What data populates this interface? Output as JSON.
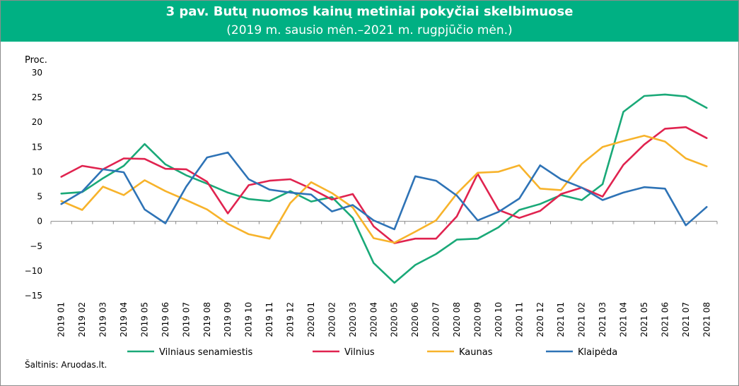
{
  "header": {
    "title": "3 pav. Butų nuomos kainų metiniai pokyčiai skelbimuose",
    "subtitle": "(2019 m. sausio mėn.–2021 m. rugpjūčio mėn.)"
  },
  "source_note": "Šaltinis: Aruodas.lt.",
  "chart_data": {
    "type": "line",
    "ylabel": "Proc.",
    "ylim": [
      -15,
      30
    ],
    "yticks": [
      -15,
      -10,
      -5,
      0,
      5,
      10,
      15,
      20,
      25,
      30
    ],
    "grid": false,
    "legend_position": "bottom",
    "categories": [
      "2019 01",
      "2019 02",
      "2019 03",
      "2019 04",
      "2019 05",
      "2019 06",
      "2019 07",
      "2019 08",
      "2019 09",
      "2019 10",
      "2019 11",
      "2019 12",
      "2020 01",
      "2020 02",
      "2020 03",
      "2020 04",
      "2020 05",
      "2020 06",
      "2020 07",
      "2020 08",
      "2020 09",
      "2020 10",
      "2020 11",
      "2020 12",
      "2021 01",
      "2021 02",
      "2021 03",
      "2021 04",
      "2021 05",
      "2021 06",
      "2021 07",
      "2021 08"
    ],
    "series": [
      {
        "name": "Vilniaus senamiestis",
        "color": "#1aa978",
        "values": [
          5.6,
          5.9,
          8.7,
          11.2,
          15.6,
          11.5,
          9.3,
          7.6,
          5.8,
          4.5,
          4.1,
          6.1,
          4.0,
          4.9,
          0.7,
          -8.4,
          -12.4,
          -8.8,
          -6.6,
          -3.7,
          -3.5,
          -1.2,
          2.3,
          3.5,
          5.3,
          4.3,
          7.5,
          22.1,
          25.3,
          25.6,
          25.2,
          22.9
        ]
      },
      {
        "name": "Vilnius",
        "color": "#e0234f",
        "values": [
          9.0,
          11.2,
          10.5,
          12.7,
          12.6,
          10.6,
          10.5,
          8.0,
          1.6,
          7.3,
          8.2,
          8.5,
          6.6,
          4.4,
          5.5,
          -1.0,
          -4.4,
          -3.5,
          -3.5,
          1.0,
          9.6,
          2.3,
          0.7,
          2.1,
          5.5,
          6.8,
          5.0,
          11.4,
          15.5,
          18.7,
          19.0,
          16.8
        ]
      },
      {
        "name": "Kaunas",
        "color": "#f7b32b",
        "values": [
          4.1,
          2.3,
          7.0,
          5.3,
          8.3,
          6.1,
          4.3,
          2.4,
          -0.5,
          -2.6,
          -3.5,
          3.7,
          7.9,
          5.7,
          2.8,
          -3.4,
          -4.3,
          -2.1,
          0.2,
          5.6,
          9.8,
          10.0,
          11.3,
          6.6,
          6.3,
          11.6,
          15.0,
          16.2,
          17.3,
          16.1,
          12.7,
          11.1
        ]
      },
      {
        "name": "Klaipėda",
        "color": "#2e73b6",
        "values": [
          3.5,
          6.0,
          10.5,
          9.9,
          2.4,
          -0.4,
          7.0,
          12.9,
          13.9,
          8.5,
          6.4,
          5.8,
          5.4,
          2.0,
          3.3,
          0.2,
          -1.6,
          9.1,
          8.2,
          5.2,
          0.2,
          1.9,
          4.6,
          11.3,
          8.5,
          6.8,
          4.3,
          5.8,
          6.9,
          6.6,
          -0.8,
          2.9
        ]
      }
    ]
  }
}
